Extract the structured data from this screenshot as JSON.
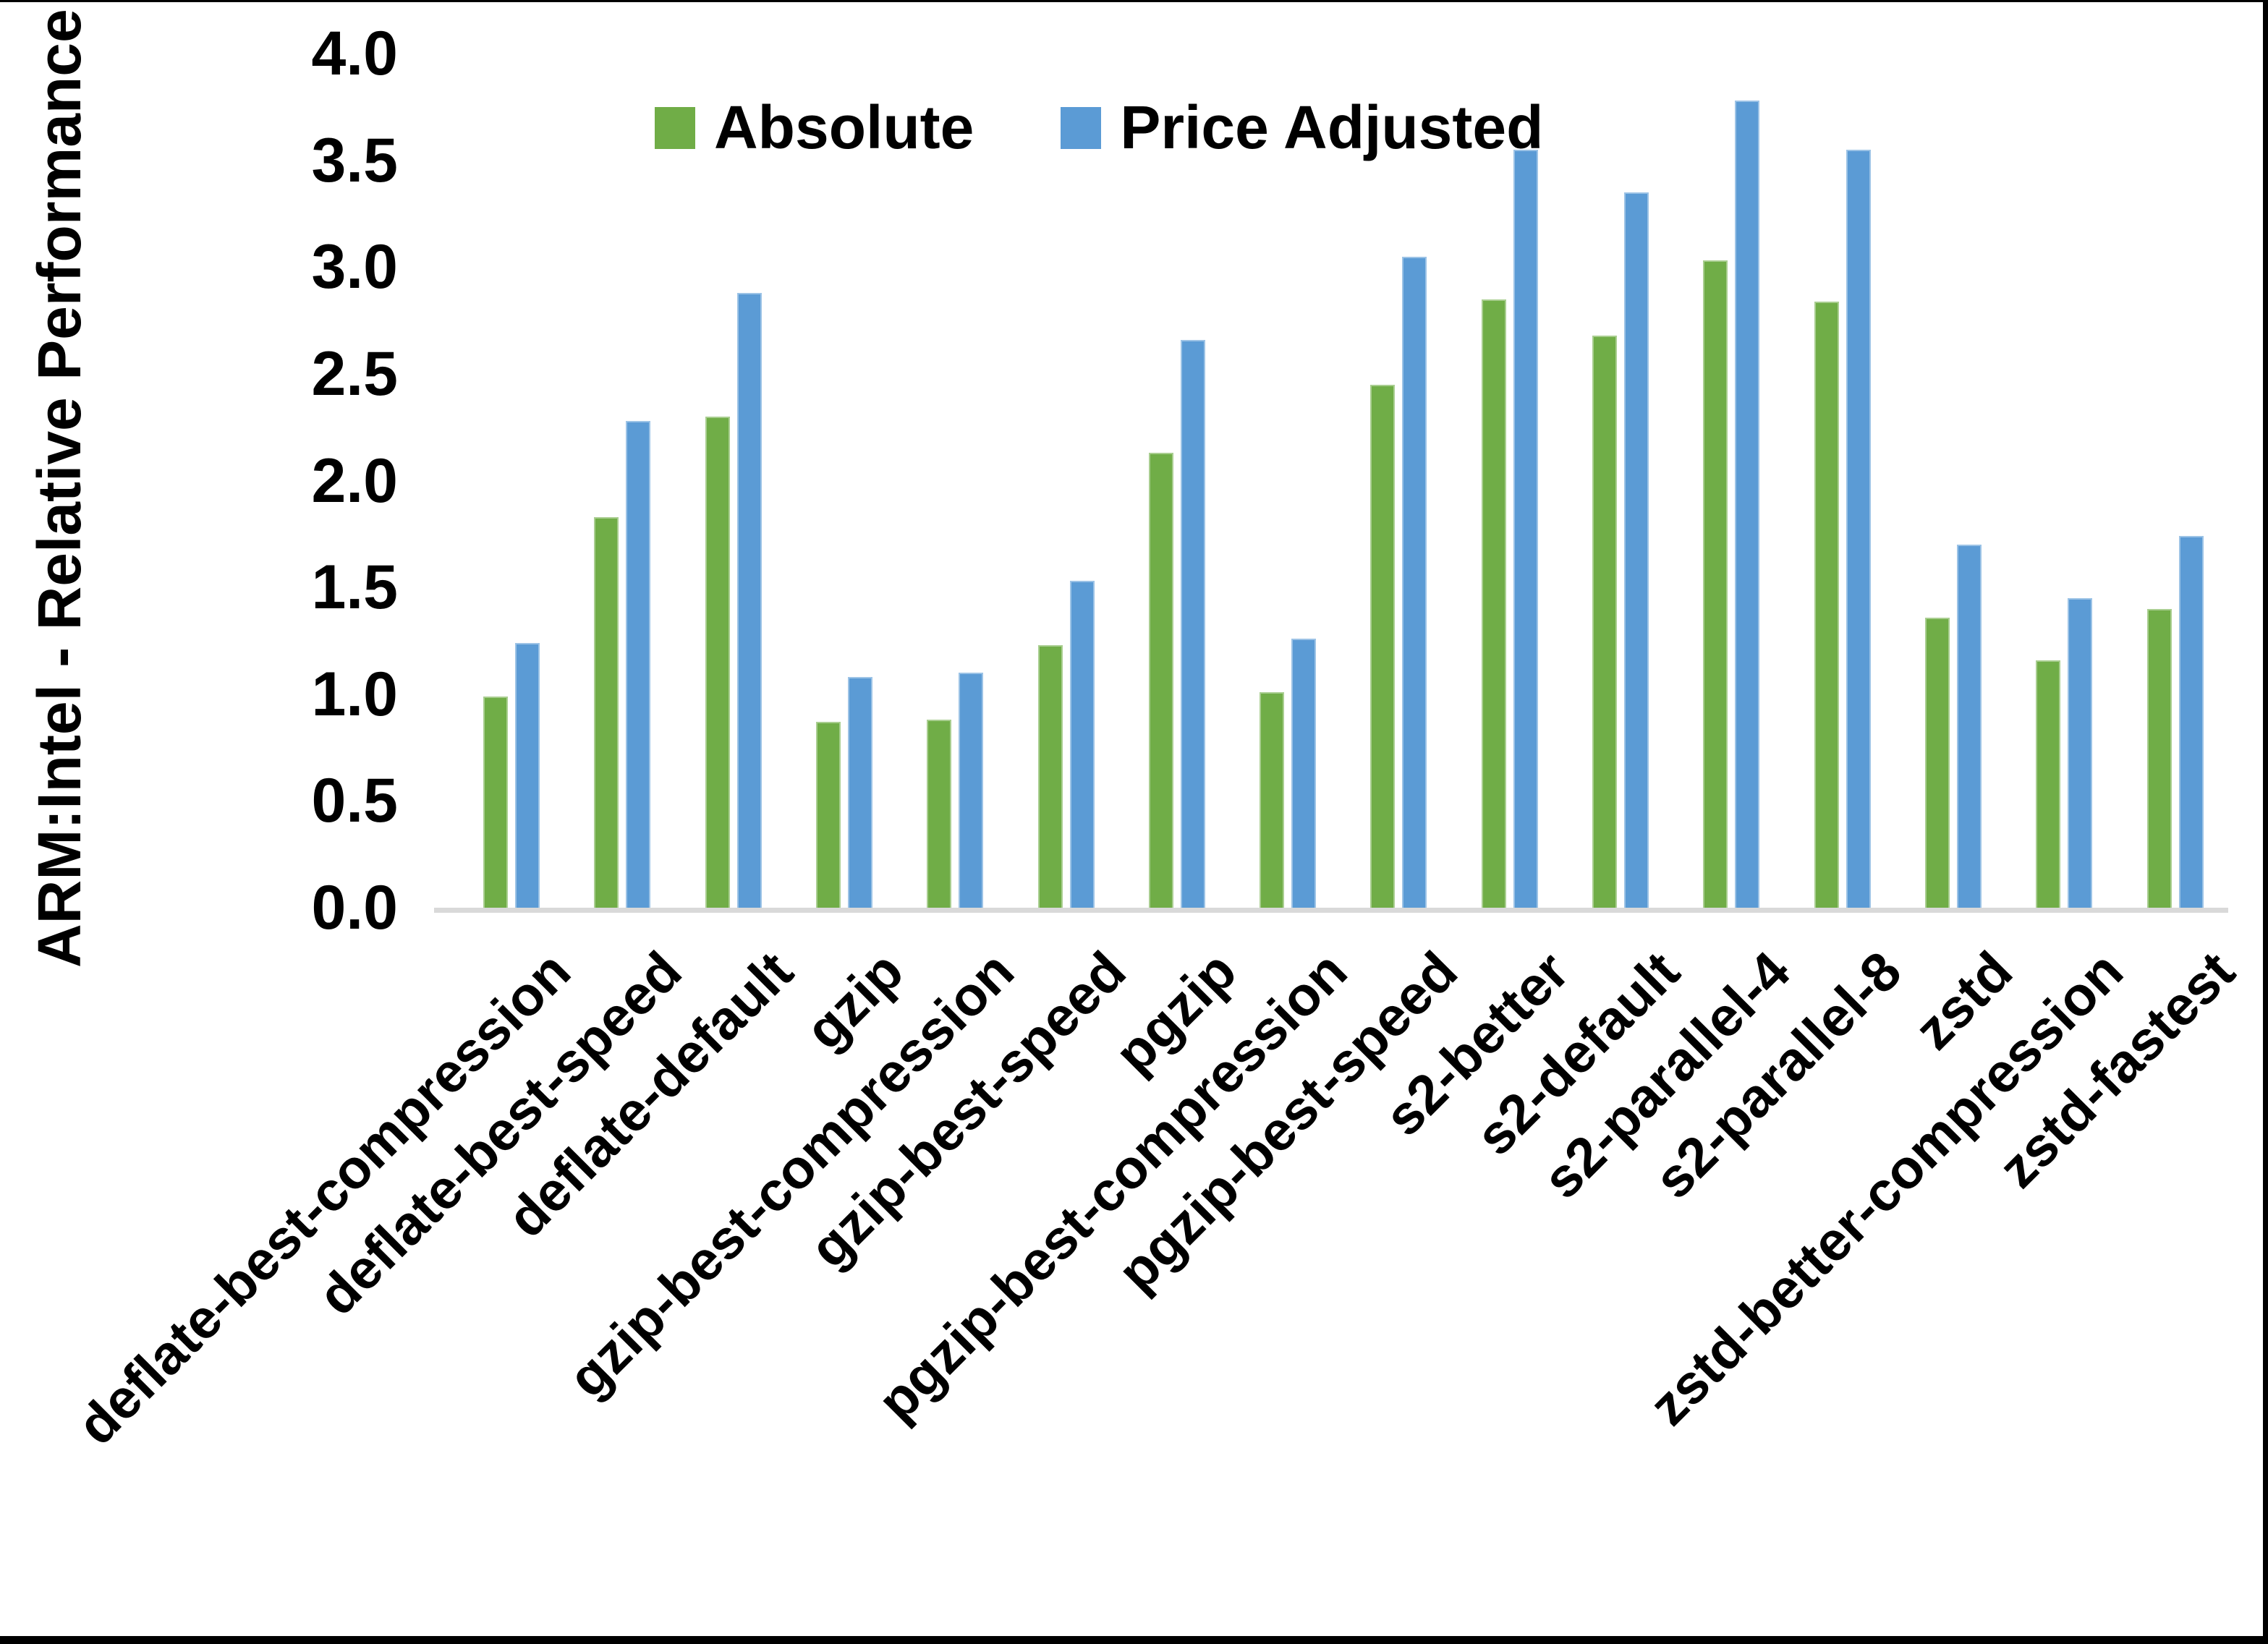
{
  "chart_data": {
    "type": "bar",
    "title": "",
    "ylabel": "ARM:Intel - Relative Performance",
    "categories": [
      "deflate-best-compression",
      "deflate-best-speed",
      "deflate-default",
      "gzip",
      "gzip-best-compression",
      "gzip-best-speed",
      "pgzip",
      "pgzip-best-compression",
      "pgzip-best-speed",
      "s2-better",
      "s2-default",
      "s2-parallel-4",
      "s2-parallel-8",
      "zstd",
      "zstd-better-compression",
      "zstd-fastest"
    ],
    "series": [
      {
        "name": "Absolute",
        "color": "#70AD47",
        "values": [
          1.0,
          1.84,
          2.31,
          0.88,
          0.89,
          1.24,
          2.14,
          1.02,
          2.46,
          2.86,
          2.69,
          3.04,
          2.85,
          1.37,
          1.17,
          1.41
        ]
      },
      {
        "name": "Price Adjusted",
        "color": "#5B9BD5",
        "values": [
          1.25,
          2.29,
          2.89,
          1.09,
          1.11,
          1.54,
          2.67,
          1.27,
          3.06,
          3.56,
          3.36,
          3.79,
          3.56,
          1.71,
          1.46,
          1.75
        ]
      }
    ],
    "ylim": [
      0,
      4
    ],
    "ytick_step": 0.5,
    "ytick_labels": [
      "0.0",
      "0.5",
      "1.0",
      "1.5",
      "2.0",
      "2.5",
      "3.0",
      "3.5",
      "4.0"
    ],
    "legend_position": "top",
    "grid": false,
    "axis_line_color": "#D9D9D9",
    "text_color": "#000000",
    "background_color": "#FFFFFF"
  }
}
